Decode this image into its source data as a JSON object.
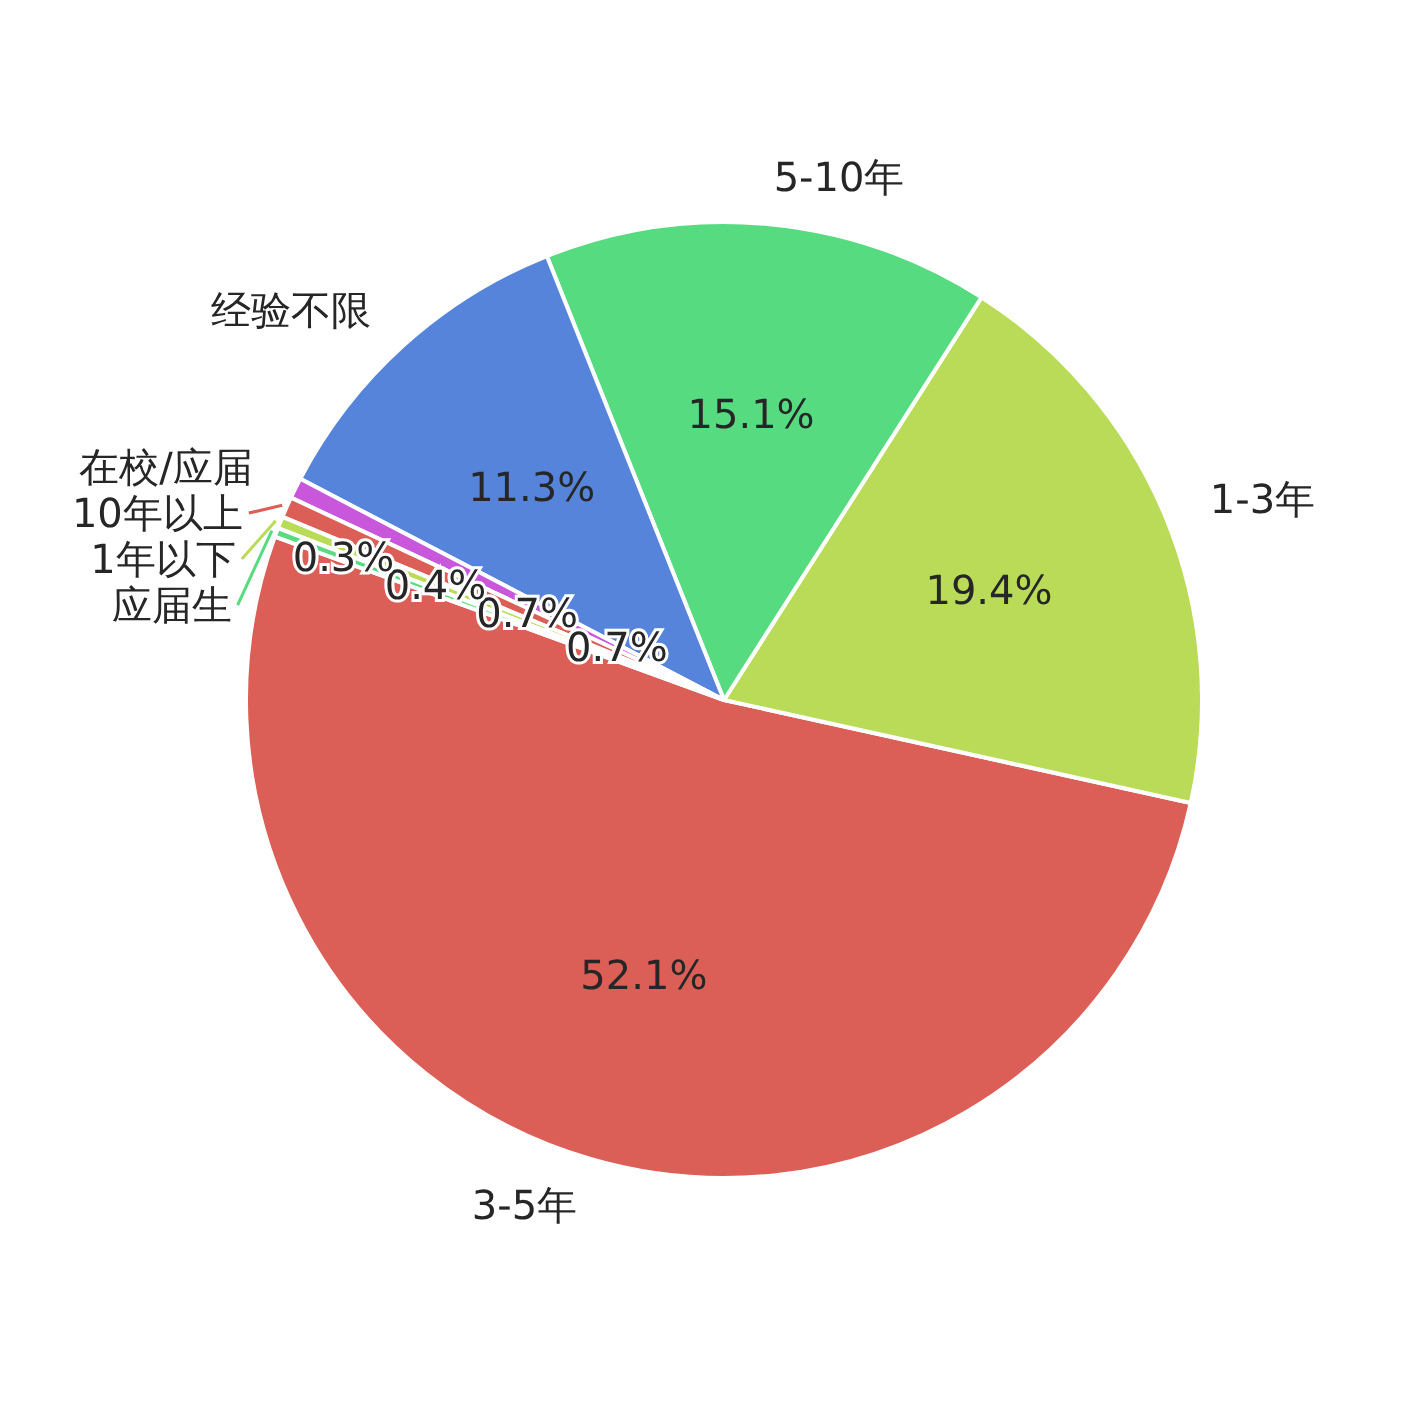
{
  "chart_data": {
    "type": "pie",
    "categories": [
      "3-5年",
      "1-3年",
      "5-10年",
      "经验不限",
      "在校/应届",
      "10年以上",
      "1年以下",
      "应届生"
    ],
    "values": [
      52.1,
      19.4,
      15.1,
      11.3,
      0.7,
      0.7,
      0.4,
      0.3
    ],
    "value_labels": [
      "52.1%",
      "19.4%",
      "15.1%",
      "11.3%",
      "0.7%",
      "0.7%",
      "0.4%",
      "0.3%"
    ],
    "colors": [
      "#db5f57",
      "#b9db57",
      "#57db80",
      "#5784db",
      "#c957db",
      "#db5f57",
      "#b9db57",
      "#57db80"
    ]
  }
}
